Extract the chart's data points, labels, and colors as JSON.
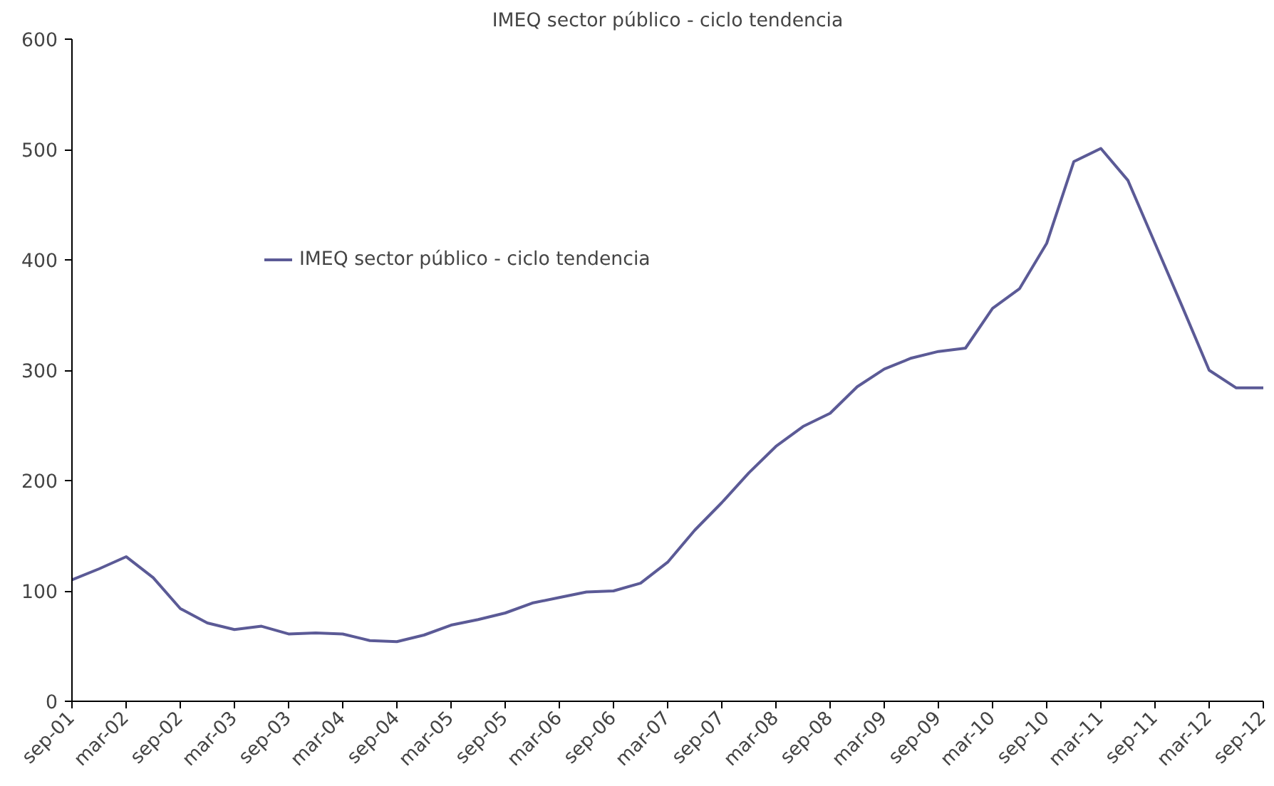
{
  "chart_data": {
    "type": "line",
    "title": "IMEQ sector público - ciclo tendencia",
    "categories": [
      "sep-01",
      null,
      "mar-02",
      null,
      "sep-02",
      null,
      "mar-03",
      null,
      "sep-03",
      null,
      "mar-04",
      null,
      "sep-04",
      null,
      "mar-05",
      null,
      "sep-05",
      null,
      "mar-06",
      null,
      "sep-06",
      null,
      "mar-07",
      null,
      "sep-07",
      null,
      "mar-08",
      null,
      "sep-08",
      null,
      "mar-09",
      null,
      "sep-09",
      null,
      "mar-10",
      null,
      "sep-10",
      null,
      "mar-11",
      null,
      "sep-11",
      null,
      "mar-12",
      null,
      "sep-12"
    ],
    "series": [
      {
        "name": "IMEQ sector público - ciclo tendencia",
        "color": "#5b5a96",
        "values": [
          110,
          120,
          131,
          112,
          84,
          71,
          65,
          68,
          61,
          62,
          61,
          55,
          54,
          60,
          69,
          74,
          80,
          89,
          94,
          99,
          100,
          107,
          126,
          155,
          180,
          207,
          231,
          249,
          261,
          285,
          301,
          311,
          317,
          320,
          356,
          374,
          415,
          489,
          501,
          472,
          415,
          358,
          300,
          284,
          284
        ]
      }
    ],
    "ylim": [
      0,
      600
    ],
    "yticks": [
      0,
      100,
      200,
      300,
      400,
      500,
      600
    ],
    "grid": false,
    "legend": "top left",
    "marker": "none",
    "line_style": "solid"
  }
}
